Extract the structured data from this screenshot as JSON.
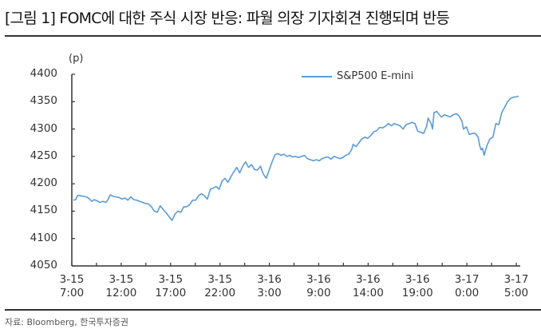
{
  "title": "[그림 1] FOMC에 대한 주식 시장 반응: 파월 의장 기자회견 진행되며 반등",
  "source": "자료: Bloomberg, 한국투자증권",
  "chart_data": {
    "type": "line",
    "title": "[그림 1] FOMC에 대한 주식 시장 반응: 파월 의장 기자회견 진행되며 반등",
    "ylabel": "(p)",
    "xlabel": "",
    "ylim": [
      4050,
      4400
    ],
    "yticks": [
      "4400",
      "4350",
      "4300",
      "4250",
      "4200",
      "4150",
      "4100",
      "4050"
    ],
    "xticks": [
      {
        "line1": "3-15",
        "line2": "7:00"
      },
      {
        "line1": "3-15",
        "line2": "12:00"
      },
      {
        "line1": "3-15",
        "line2": "17:00"
      },
      {
        "line1": "3-15",
        "line2": "22:00"
      },
      {
        "line1": "3-16",
        "line2": "3:00"
      },
      {
        "line1": "3-16",
        "line2": "9:00"
      },
      {
        "line1": "3-16",
        "line2": "14:00"
      },
      {
        "line1": "3-16",
        "line2": "19:00"
      },
      {
        "line1": "3-17",
        "line2": "0:00"
      },
      {
        "line1": "3-17",
        "line2": "5:00"
      }
    ],
    "grid": false,
    "legend_position": "top-right",
    "series": [
      {
        "name": "S&P500 E-mini",
        "color": "#5b9bd5",
        "points": [
          [
            0,
            4170
          ],
          [
            3,
            4171
          ],
          [
            6,
            4179
          ],
          [
            10,
            4178
          ],
          [
            14,
            4177
          ],
          [
            18,
            4176
          ],
          [
            22,
            4172
          ],
          [
            25,
            4168
          ],
          [
            28,
            4171
          ],
          [
            32,
            4169
          ],
          [
            36,
            4166
          ],
          [
            40,
            4168
          ],
          [
            44,
            4166
          ],
          [
            47,
            4171
          ],
          [
            50,
            4180
          ],
          [
            54,
            4177
          ],
          [
            58,
            4176
          ],
          [
            62,
            4175
          ],
          [
            66,
            4172
          ],
          [
            70,
            4174
          ],
          [
            74,
            4170
          ],
          [
            78,
            4176
          ],
          [
            82,
            4171
          ],
          [
            86,
            4170
          ],
          [
            90,
            4168
          ],
          [
            94,
            4166
          ],
          [
            98,
            4164
          ],
          [
            102,
            4163
          ],
          [
            106,
            4158
          ],
          [
            110,
            4150
          ],
          [
            114,
            4148
          ],
          [
            118,
            4160
          ],
          [
            122,
            4153
          ],
          [
            126,
            4147
          ],
          [
            130,
            4140
          ],
          [
            134,
            4133
          ],
          [
            138,
            4145
          ],
          [
            142,
            4150
          ],
          [
            146,
            4148
          ],
          [
            150,
            4158
          ],
          [
            154,
            4158
          ],
          [
            158,
            4162
          ],
          [
            162,
            4170
          ],
          [
            166,
            4170
          ],
          [
            170,
            4178
          ],
          [
            174,
            4182
          ],
          [
            178,
            4178
          ],
          [
            182,
            4172
          ],
          [
            186,
            4190
          ],
          [
            190,
            4192
          ],
          [
            194,
            4195
          ],
          [
            198,
            4190
          ],
          [
            202,
            4205
          ],
          [
            206,
            4210
          ],
          [
            210,
            4203
          ],
          [
            214,
            4213
          ],
          [
            218,
            4222
          ],
          [
            222,
            4230
          ],
          [
            226,
            4220
          ],
          [
            230,
            4232
          ],
          [
            234,
            4240
          ],
          [
            238,
            4230
          ],
          [
            242,
            4235
          ],
          [
            246,
            4226
          ],
          [
            250,
            4225
          ],
          [
            254,
            4232
          ],
          [
            258,
            4218
          ],
          [
            262,
            4210
          ],
          [
            266,
            4225
          ],
          [
            270,
            4240
          ],
          [
            274,
            4253
          ],
          [
            278,
            4255
          ],
          [
            282,
            4252
          ],
          [
            286,
            4254
          ],
          [
            290,
            4250
          ],
          [
            294,
            4252
          ],
          [
            298,
            4249
          ],
          [
            302,
            4250
          ],
          [
            306,
            4248
          ],
          [
            310,
            4250
          ],
          [
            314,
            4252
          ],
          [
            318,
            4246
          ],
          [
            322,
            4244
          ],
          [
            326,
            4242
          ],
          [
            330,
            4244
          ],
          [
            334,
            4242
          ],
          [
            338,
            4246
          ],
          [
            342,
            4248
          ],
          [
            346,
            4249
          ],
          [
            350,
            4245
          ],
          [
            354,
            4250
          ],
          [
            358,
            4248
          ],
          [
            362,
            4246
          ],
          [
            366,
            4248
          ],
          [
            370,
            4252
          ],
          [
            374,
            4254
          ],
          [
            378,
            4262
          ],
          [
            380,
            4272
          ],
          [
            384,
            4268
          ],
          [
            388,
            4275
          ],
          [
            392,
            4282
          ],
          [
            396,
            4285
          ],
          [
            400,
            4283
          ],
          [
            404,
            4288
          ],
          [
            408,
            4295
          ],
          [
            412,
            4297
          ],
          [
            416,
            4303
          ],
          [
            420,
            4302
          ],
          [
            424,
            4305
          ],
          [
            428,
            4310
          ],
          [
            432,
            4306
          ],
          [
            436,
            4310
          ],
          [
            440,
            4308
          ],
          [
            444,
            4306
          ],
          [
            448,
            4300
          ],
          [
            452,
            4308
          ],
          [
            456,
            4310
          ],
          [
            460,
            4312
          ],
          [
            464,
            4310
          ],
          [
            468,
            4296
          ],
          [
            472,
            4294
          ],
          [
            476,
            4292
          ],
          [
            480,
            4305
          ],
          [
            482,
            4320
          ],
          [
            486,
            4310
          ],
          [
            488,
            4300
          ],
          [
            490,
            4330
          ],
          [
            494,
            4332
          ],
          [
            496,
            4328
          ],
          [
            500,
            4322
          ],
          [
            504,
            4326
          ],
          [
            508,
            4324
          ],
          [
            512,
            4322
          ],
          [
            516,
            4326
          ],
          [
            520,
            4328
          ],
          [
            524,
            4324
          ],
          [
            528,
            4314
          ],
          [
            530,
            4300
          ],
          [
            534,
            4304
          ],
          [
            538,
            4290
          ],
          [
            542,
            4292
          ],
          [
            546,
            4292
          ],
          [
            550,
            4285
          ],
          [
            552,
            4270
          ],
          [
            554,
            4262
          ],
          [
            556,
            4265
          ],
          [
            558,
            4252
          ],
          [
            562,
            4270
          ],
          [
            566,
            4282
          ],
          [
            570,
            4285
          ],
          [
            574,
            4310
          ],
          [
            578,
            4308
          ],
          [
            582,
            4330
          ],
          [
            586,
            4340
          ],
          [
            590,
            4350
          ],
          [
            594,
            4356
          ],
          [
            598,
            4358
          ],
          [
            602,
            4359
          ],
          [
            605,
            4360
          ]
        ]
      }
    ],
    "legend": [
      "S&P500 E-mini"
    ]
  }
}
